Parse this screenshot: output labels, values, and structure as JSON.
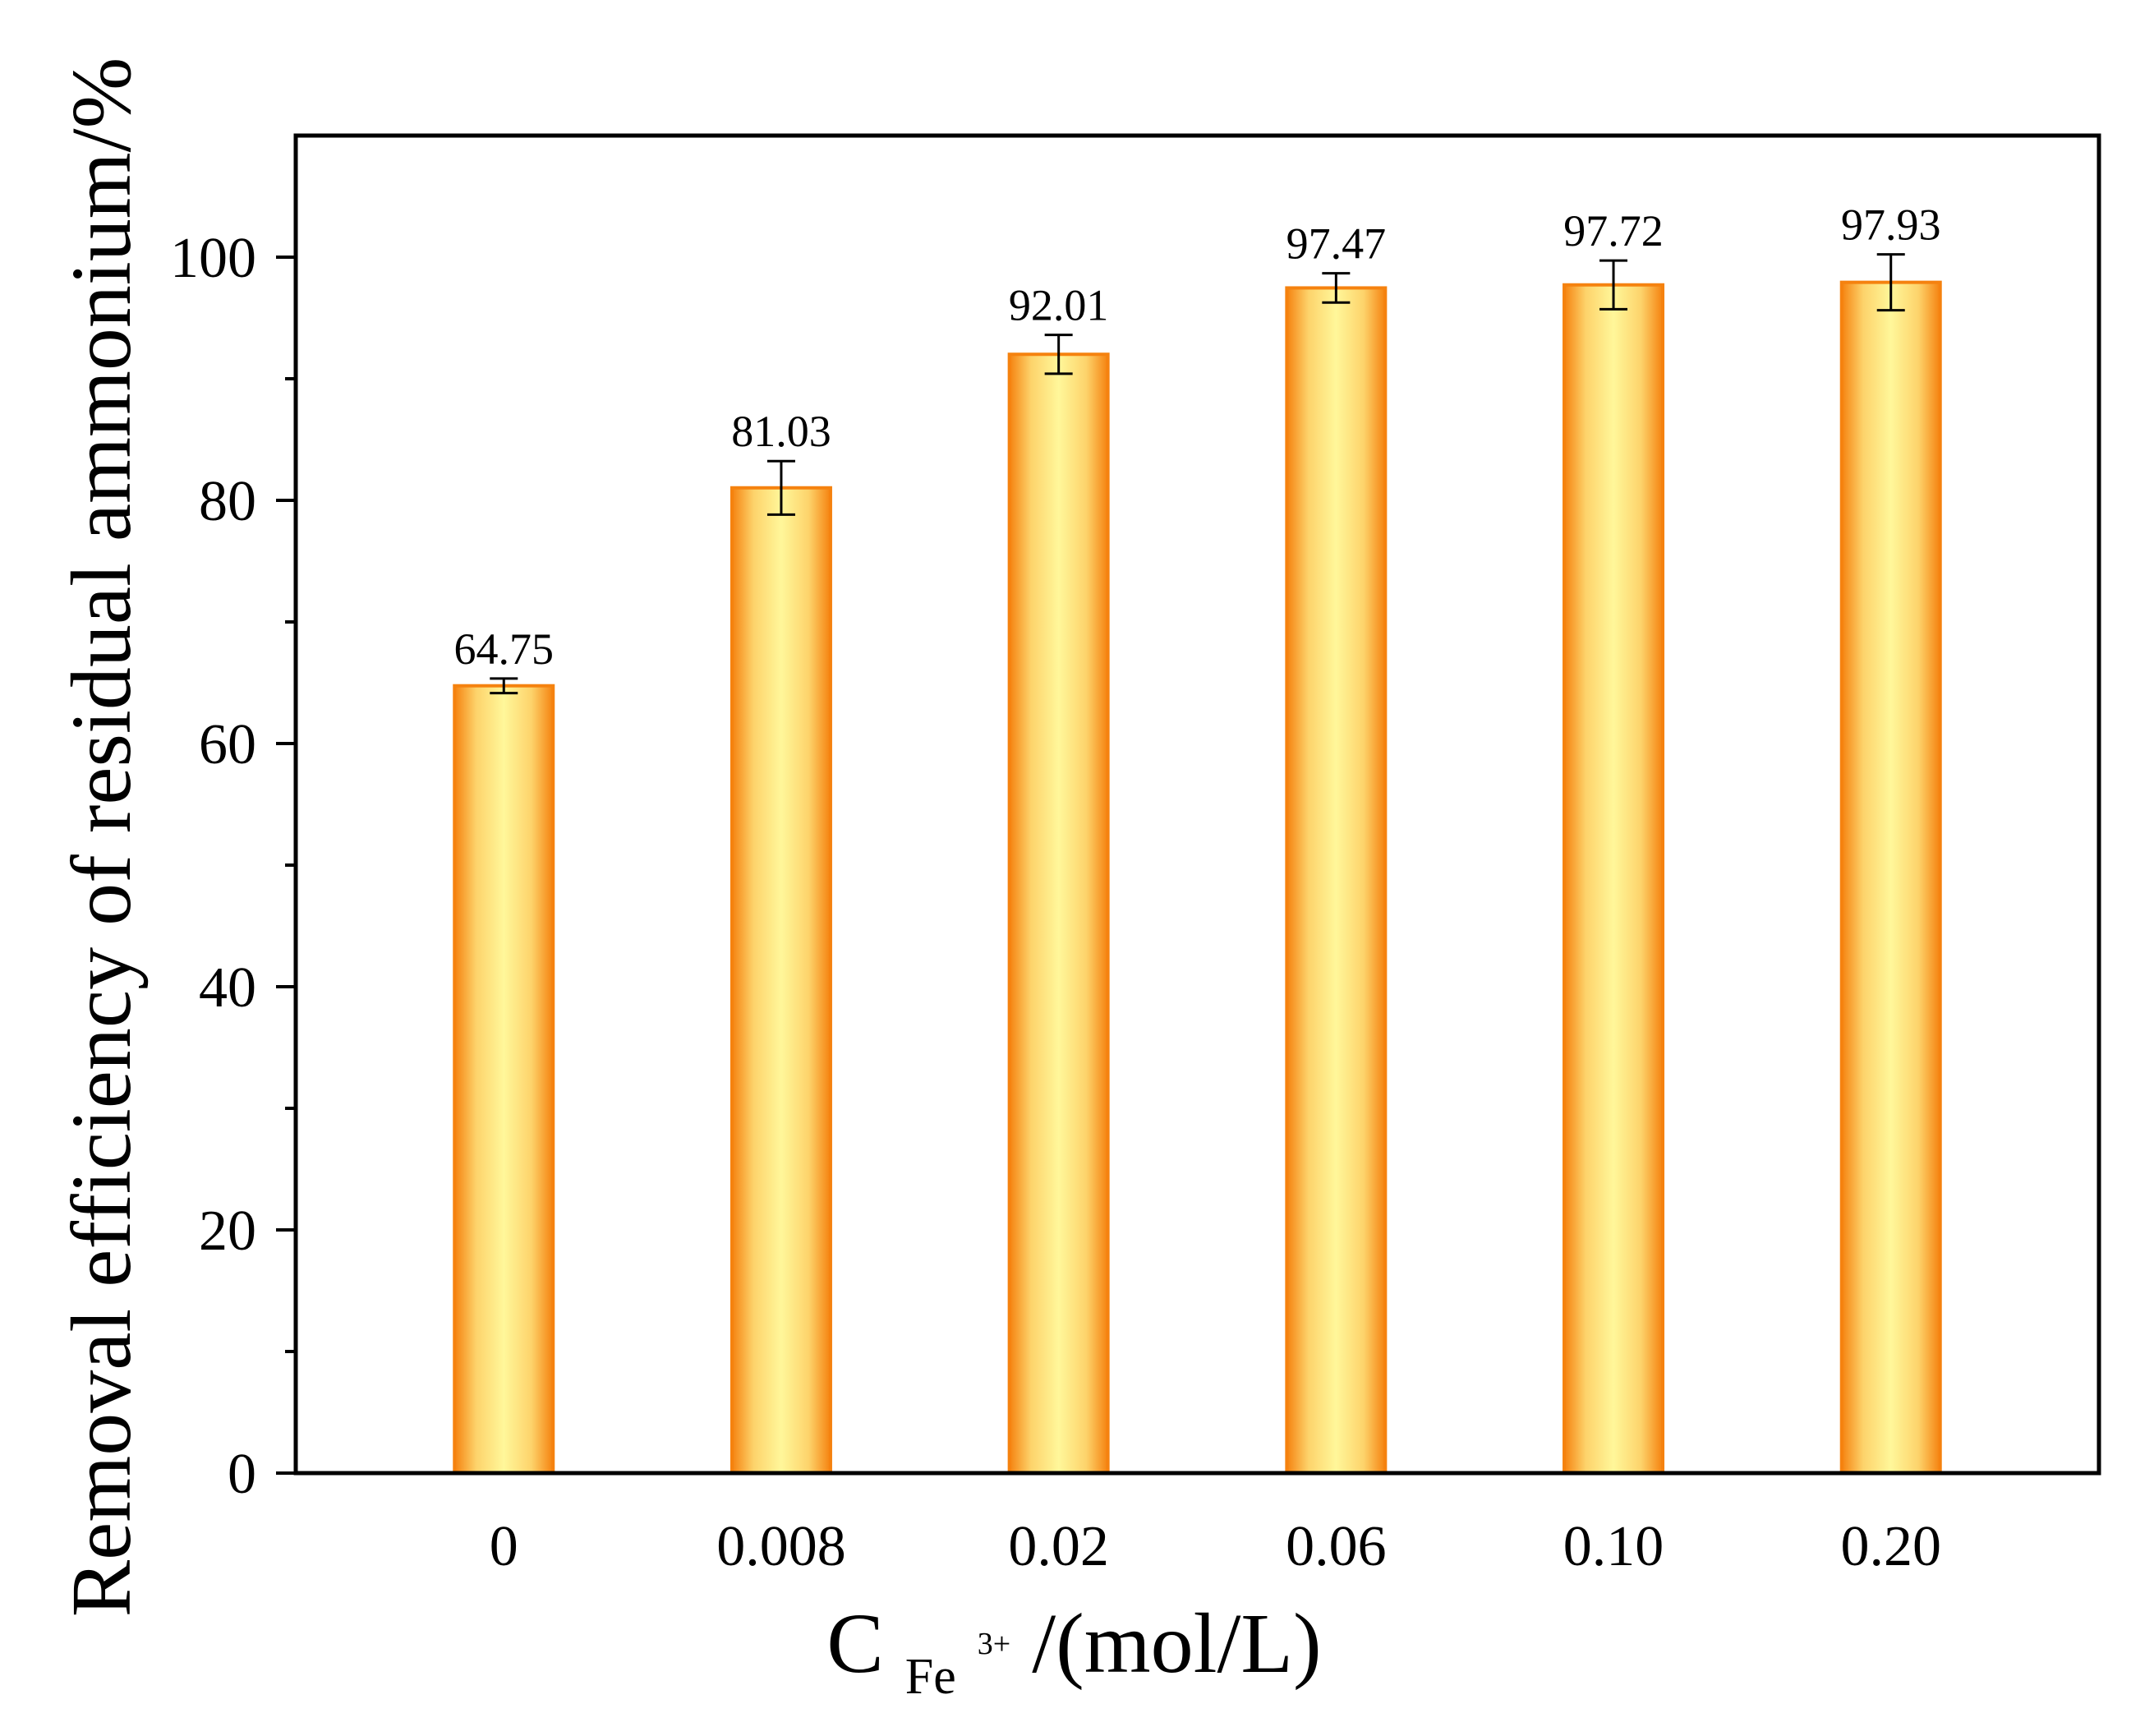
{
  "chart_data": {
    "type": "bar",
    "categories": [
      "0",
      "0.008",
      "0.02",
      "0.06",
      "0.10",
      "0.20"
    ],
    "values": [
      64.75,
      81.03,
      92.01,
      97.47,
      97.72,
      97.93
    ],
    "value_labels": [
      "64.75",
      "81.03",
      "92.01",
      "97.47",
      "97.72",
      "97.93"
    ],
    "error_bars": [
      0.6,
      2.2,
      1.6,
      1.2,
      2.0,
      2.3
    ],
    "ylim": [
      0,
      110
    ],
    "yticks": [
      0,
      20,
      40,
      60,
      80,
      100
    ],
    "yticks_minor": [
      10,
      30,
      50,
      70,
      90
    ],
    "ylabel": "Removal efficiency of residual ammonium/%",
    "xlabel": {
      "main": "C",
      "subscript": "Fe",
      "superscript": "3+",
      "suffix": "/(mol/L)"
    },
    "title": "",
    "grid": false,
    "colors": {
      "bar_edge": "#f5820f",
      "bar_center": "#fff79a",
      "bar_mid": "#fdd36b",
      "axis": "#000000",
      "error": "#000000"
    }
  }
}
